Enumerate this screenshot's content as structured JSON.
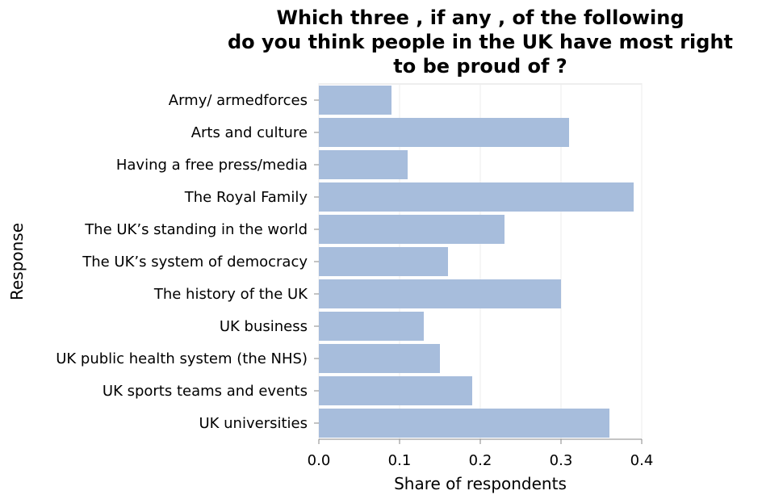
{
  "chart_data": {
    "type": "bar",
    "orientation": "horizontal",
    "title_lines": [
      "Which three , if any , of the following",
      "do you think people in the UK have most right",
      "to be proud of ?"
    ],
    "xlabel": "Share of respondents",
    "ylabel": "Response",
    "categories": [
      "Army/ armedforces",
      "Arts and culture",
      "Having a free press/media",
      "The Royal Family",
      "The UK’s standing in the world",
      "The UK’s system of democracy",
      "The history of the UK",
      "UK business",
      "UK public health system (the NHS)",
      "UK sports teams and events",
      "UK universities"
    ],
    "values": [
      0.09,
      0.31,
      0.11,
      0.39,
      0.23,
      0.16,
      0.3,
      0.13,
      0.15,
      0.19,
      0.36
    ],
    "xlim": [
      0,
      0.4
    ],
    "xticks": [
      "0.0",
      "0.1",
      "0.2",
      "0.3",
      "0.4"
    ],
    "grid": true,
    "colors": {
      "bar": "#a7bddc",
      "grid": "#eeeeee",
      "axis": "#888888",
      "frame": "#dddddd"
    }
  }
}
